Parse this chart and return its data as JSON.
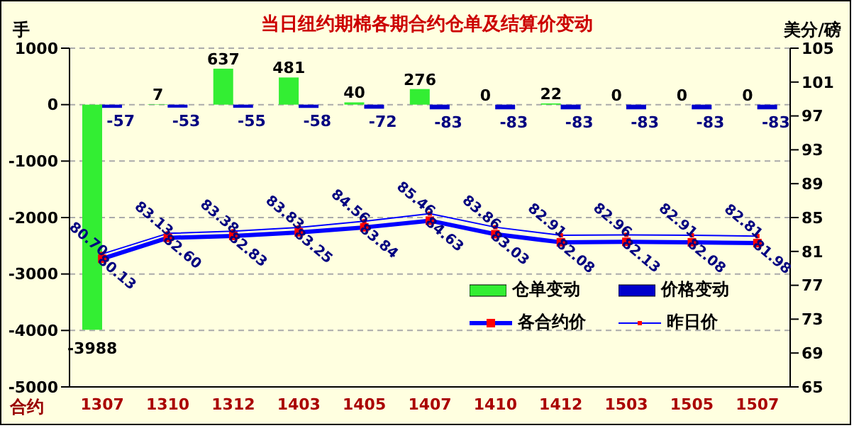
{
  "chart_data": {
    "type": "bar",
    "title": "当日纽约期棉各期合约仓单及结算价变动",
    "xlabel": "合约",
    "ylabel": "手",
    "y2label": "美分/磅",
    "categories": [
      "1307",
      "1310",
      "1312",
      "1403",
      "1405",
      "1407",
      "1410",
      "1412",
      "1503",
      "1505",
      "1507"
    ],
    "series": [
      {
        "name": "仓单变动",
        "color": "#33ee33",
        "values": [
          -3988,
          7,
          637,
          481,
          40,
          276,
          0,
          22,
          0,
          0,
          0
        ],
        "value_labels": [
          "-3988",
          "7",
          "637",
          "481",
          "40",
          "276",
          "0",
          "22",
          "0",
          "0",
          "0"
        ]
      },
      {
        "name": "价格变动",
        "color": "#0000cc",
        "values": [
          -57,
          -53,
          -55,
          -58,
          -72,
          -83,
          -83,
          -83,
          -83,
          -83,
          -83
        ],
        "value_labels": [
          "-57",
          "-53",
          "-55",
          "-58",
          "-72",
          "-83",
          "-83",
          "-83",
          "-83",
          "-83",
          "-83"
        ]
      },
      {
        "name": "各合约价",
        "type": "line",
        "axis": "y2",
        "color": "#0000ff",
        "values": [
          80.13,
          82.6,
          82.83,
          83.25,
          83.84,
          84.63,
          83.03,
          82.08,
          82.13,
          82.08,
          81.98
        ],
        "value_labels": [
          "80.13",
          "82.60",
          "82.83",
          "83.25",
          "83.84",
          "84.63",
          "83.03",
          "82.08",
          "82.13",
          "82.08",
          "81.98"
        ]
      },
      {
        "name": "昨日价",
        "type": "line",
        "axis": "y2",
        "color": "#0000ff",
        "values": [
          80.7,
          83.13,
          83.38,
          83.83,
          84.56,
          85.46,
          83.86,
          82.91,
          82.96,
          82.91,
          82.81
        ],
        "value_labels": [
          "80.70",
          "83.13",
          "83.38",
          "83.83",
          "84.56",
          "85.46",
          "83.86",
          "82.91",
          "82.96",
          "82.91",
          "82.81"
        ]
      }
    ],
    "ylim": [
      -5000,
      1000
    ],
    "yticks": [
      -5000,
      -4000,
      -3000,
      -2000,
      -1000,
      0,
      1000
    ],
    "y2lim": [
      65,
      105
    ],
    "y2ticks": [
      65,
      69,
      73,
      77,
      81,
      85,
      89,
      93,
      97,
      101,
      105
    ],
    "grid": "y",
    "legend": "bottom right",
    "marker": "square"
  }
}
